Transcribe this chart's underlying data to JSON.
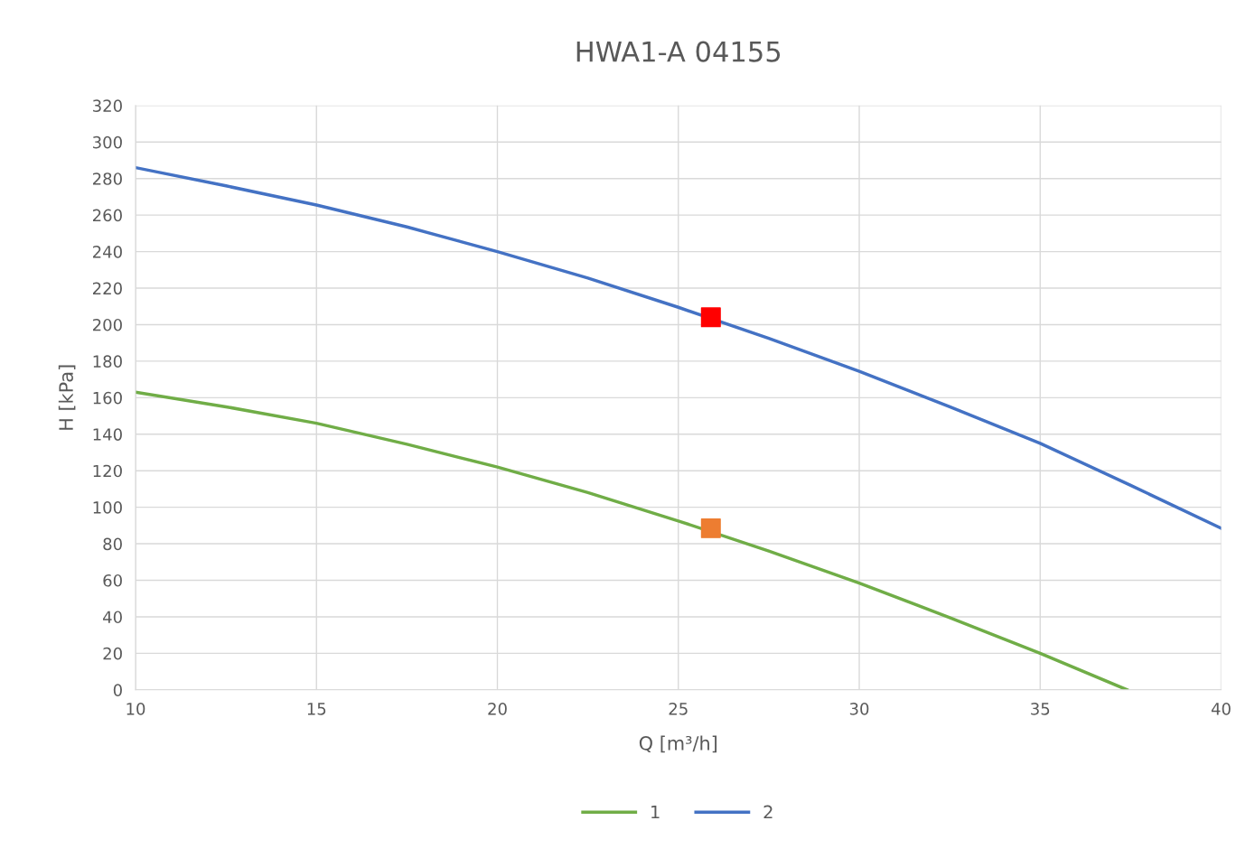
{
  "chart_data": {
    "type": "line",
    "title": "HWA1-A 04155",
    "xlabel": "Q [m³/h]",
    "ylabel": "H [kPa]",
    "xlim": [
      10,
      40
    ],
    "xticks": [
      10,
      15,
      20,
      25,
      30,
      35,
      40
    ],
    "ylim": [
      0,
      320
    ],
    "yticks": [
      0,
      20,
      40,
      60,
      80,
      100,
      120,
      140,
      160,
      180,
      200,
      220,
      240,
      260,
      280,
      300,
      320
    ],
    "grid": true,
    "legend": "bottom",
    "marker": "none",
    "line_style": "solid",
    "series": [
      {
        "name": "1",
        "color": "#70ad47",
        "x": [
          10,
          12.5,
          15,
          17.5,
          20,
          22.5,
          25,
          27.5,
          30,
          32.5,
          35,
          37.4
        ],
        "values": [
          163,
          155,
          146,
          134.5,
          122,
          108,
          92.5,
          76,
          58.5,
          39.5,
          20,
          0
        ]
      },
      {
        "name": "2",
        "color": "#4472c4",
        "x": [
          10,
          12.5,
          15,
          17.5,
          20,
          22.5,
          25,
          27.5,
          30,
          32.5,
          35,
          37.5,
          40
        ],
        "values": [
          286,
          276,
          265.5,
          253.5,
          240,
          225.5,
          209.5,
          192.5,
          174.5,
          155,
          135,
          112,
          88.5
        ]
      },
      {
        "type": "scatter",
        "marker": "square",
        "color": "#ff0000",
        "x": [
          25.9
        ],
        "values": [
          204
        ]
      },
      {
        "type": "scatter",
        "marker": "square",
        "color": "#ed7d31",
        "x": [
          25.9
        ],
        "values": [
          88.5
        ]
      }
    ]
  }
}
